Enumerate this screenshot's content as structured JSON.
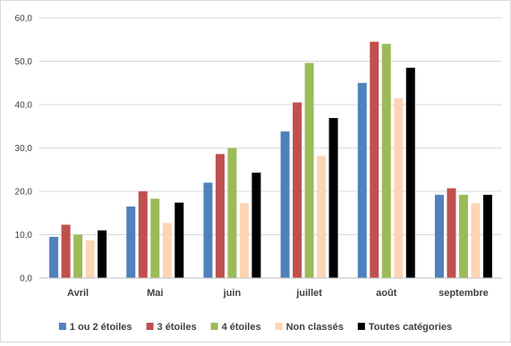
{
  "chart_data": {
    "type": "bar",
    "title": "",
    "xlabel": "",
    "ylabel": "",
    "ylim": [
      0,
      60
    ],
    "yticks": [
      "0,0",
      "10,0",
      "20,0",
      "30,0",
      "40,0",
      "50,0",
      "60,0"
    ],
    "grid": true,
    "legend_position": "bottom",
    "categories": [
      "Avril",
      "Mai",
      "juin",
      "juillet",
      "août",
      "septembre"
    ],
    "series": [
      {
        "name": "1 ou 2 étoiles",
        "color": "#4f81bd",
        "values": [
          9.5,
          16.5,
          22.0,
          33.8,
          45.0,
          19.2
        ]
      },
      {
        "name": "3 étoiles",
        "color": "#c0504d",
        "values": [
          12.3,
          20.0,
          28.6,
          40.5,
          54.5,
          20.7
        ]
      },
      {
        "name": "4 étoiles",
        "color": "#9bbb59",
        "values": [
          10.0,
          18.3,
          30.0,
          49.6,
          54.0,
          19.2
        ]
      },
      {
        "name": "Non classés",
        "color": "#fcd5b5",
        "values": [
          8.7,
          12.7,
          17.3,
          28.2,
          41.5,
          17.3
        ]
      },
      {
        "name": "Toutes catégories",
        "color": "#000000",
        "values": [
          11.0,
          17.4,
          24.3,
          36.9,
          48.5,
          19.2
        ]
      }
    ]
  }
}
